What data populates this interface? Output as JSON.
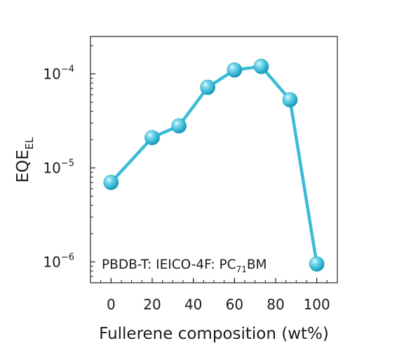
{
  "chart_data": {
    "type": "line",
    "xlabel": "Fullerene composition (wt%)",
    "ylabel_main": "EQE",
    "ylabel_sub": "EL",
    "annotation": {
      "prefix": "PBDB-T: IEICO-4F: PC",
      "subscript": "71",
      "suffix": "BM"
    },
    "xlim": [
      -10,
      110
    ],
    "ylim": [
      6e-07,
      0.00025
    ],
    "y_scale": "log",
    "x_ticks": [
      0,
      20,
      40,
      60,
      80,
      100
    ],
    "y_ticks": [
      {
        "value": 1e-06,
        "base": "10",
        "exp": "−6"
      },
      {
        "value": 1e-05,
        "base": "10",
        "exp": "−5"
      },
      {
        "value": 0.0001,
        "base": "10",
        "exp": "−4"
      }
    ],
    "grid": false,
    "series": [
      {
        "x": [
          0,
          20,
          33,
          47,
          60,
          73,
          87,
          100
        ],
        "y": [
          7e-06,
          2.1e-05,
          2.8e-05,
          7.2e-05,
          0.00011,
          0.00012,
          5.3e-05,
          9.5e-07
        ],
        "color": "#3bbcd6"
      }
    ]
  }
}
